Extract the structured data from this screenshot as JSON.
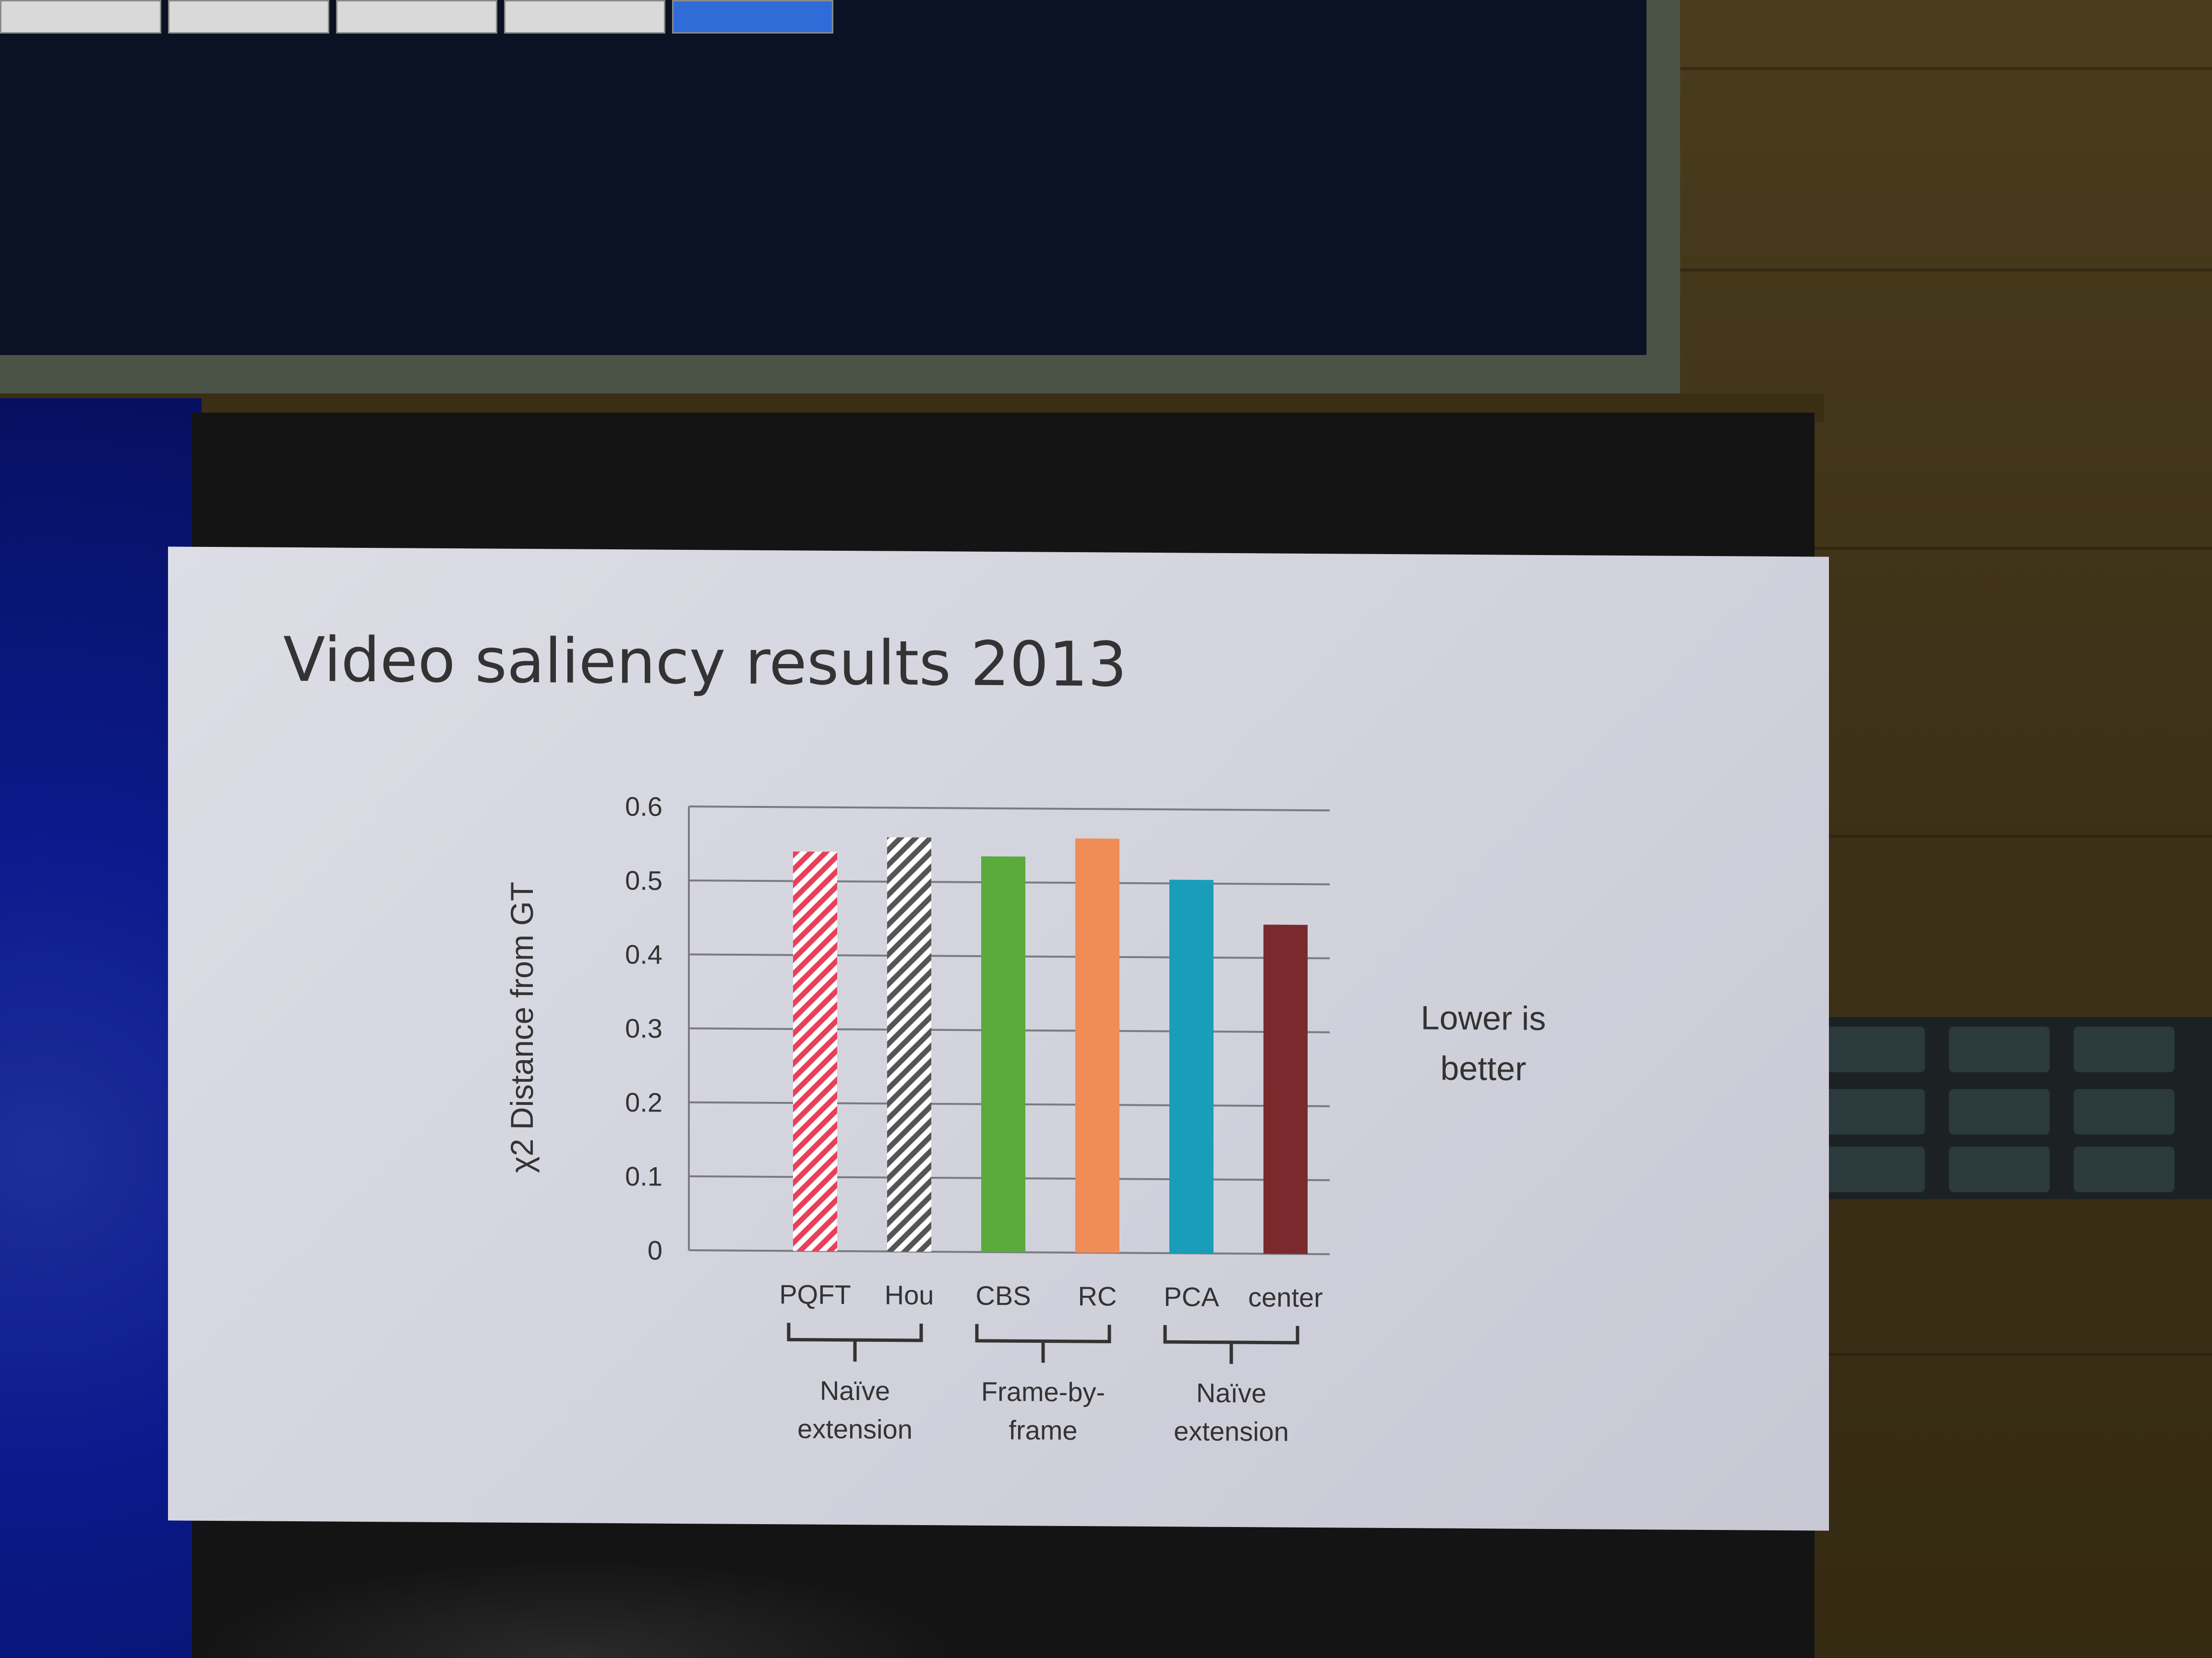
{
  "slide": {
    "title": "Video saliency results 2013",
    "annotation_line1": "Lower is",
    "annotation_line2": "better"
  },
  "chart_data": {
    "type": "bar",
    "ylabel": "χ2 Distance from GT",
    "xlabel": "",
    "ylim": [
      0,
      0.6
    ],
    "yticks": [
      "0",
      "0.1",
      "0.2",
      "0.3",
      "0.4",
      "0.5",
      "0.6"
    ],
    "grid": true,
    "categories": [
      "PQFT",
      "Hou",
      "CBS",
      "RC",
      "PCA",
      "center"
    ],
    "values": [
      0.54,
      0.56,
      0.535,
      0.56,
      0.505,
      0.445
    ],
    "colors": [
      "#e8405a",
      "#555555",
      "#5aaa3c",
      "#f08c55",
      "#1a9dbb",
      "#7a2a2c"
    ],
    "hatched": [
      true,
      true,
      false,
      false,
      false,
      false
    ],
    "groups": [
      {
        "line1": "Naïve",
        "line2": "extension",
        "from": "PQFT",
        "to": "Hou"
      },
      {
        "line1": "Frame-by-",
        "line2": "frame",
        "from": "CBS",
        "to": "RC"
      },
      {
        "line1": "Naïve",
        "line2": "extension",
        "from": "PCA",
        "to": "center"
      }
    ]
  }
}
